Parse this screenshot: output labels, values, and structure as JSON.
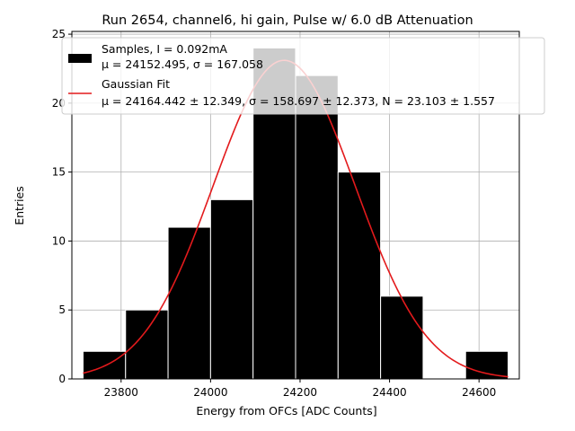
{
  "chart_data": {
    "type": "bar",
    "title": "Run 2654, channel6, hi gain, Pulse w/ 6.0 dB Attenuation",
    "xlabel": "Energy from OFCs [ADC Counts]",
    "ylabel": "Entries",
    "xlim": [
      23690,
      24690
    ],
    "ylim": [
      0,
      25.2
    ],
    "x_ticks": [
      23800,
      24000,
      24200,
      24400,
      24600
    ],
    "y_ticks": [
      0,
      5,
      10,
      15,
      20,
      25
    ],
    "grid": true,
    "legend_position": "top-left",
    "histogram": {
      "name": "Samples, I = 0.092mA",
      "name_line2": "μ = 24152.495, σ = 167.058",
      "color": "#000000",
      "bins": [
        {
          "x0": 23715,
          "x1": 23810,
          "count": 2
        },
        {
          "x0": 23810,
          "x1": 23905,
          "count": 5
        },
        {
          "x0": 23905,
          "x1": 24000,
          "count": 11
        },
        {
          "x0": 24000,
          "x1": 24095,
          "count": 13
        },
        {
          "x0": 24095,
          "x1": 24190,
          "count": 24
        },
        {
          "x0": 24190,
          "x1": 24285,
          "count": 22
        },
        {
          "x0": 24285,
          "x1": 24380,
          "count": 15
        },
        {
          "x0": 24380,
          "x1": 24475,
          "count": 6
        },
        {
          "x0": 24475,
          "x1": 24570,
          "count": 0
        },
        {
          "x0": 24570,
          "x1": 24665,
          "count": 2
        }
      ]
    },
    "fit": {
      "name": "Gaussian Fit",
      "name_line2": "μ = 24164.442 ± 12.349, σ = 158.697 ± 12.373, N = 23.103 ± 1.557",
      "color": "#e31a1c",
      "mu": 24164.442,
      "sigma": 158.697,
      "N": 23.103,
      "x_range": [
        23715,
        24665
      ]
    }
  }
}
